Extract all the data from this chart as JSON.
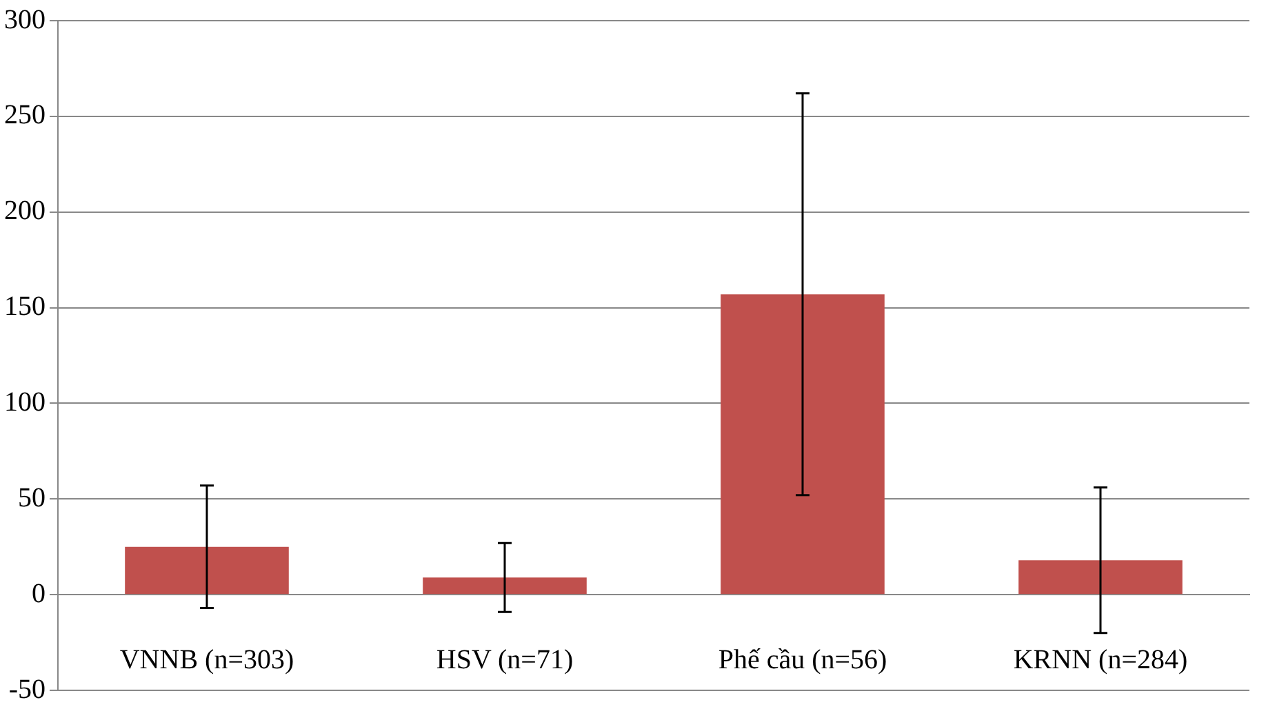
{
  "chart_data": {
    "type": "bar",
    "categories": [
      "VNNB (n=303)",
      "HSV (n=71)",
      "Phế cầu (n=56)",
      "KRNN (n=284)"
    ],
    "values": [
      25,
      9,
      157,
      18
    ],
    "errors": [
      32,
      18,
      105,
      38
    ],
    "color": "#c0504d",
    "ylim": [
      -50,
      300
    ],
    "yticks": [
      -50,
      0,
      50,
      100,
      150,
      200,
      250,
      300
    ],
    "grid": "y",
    "legend": false
  }
}
